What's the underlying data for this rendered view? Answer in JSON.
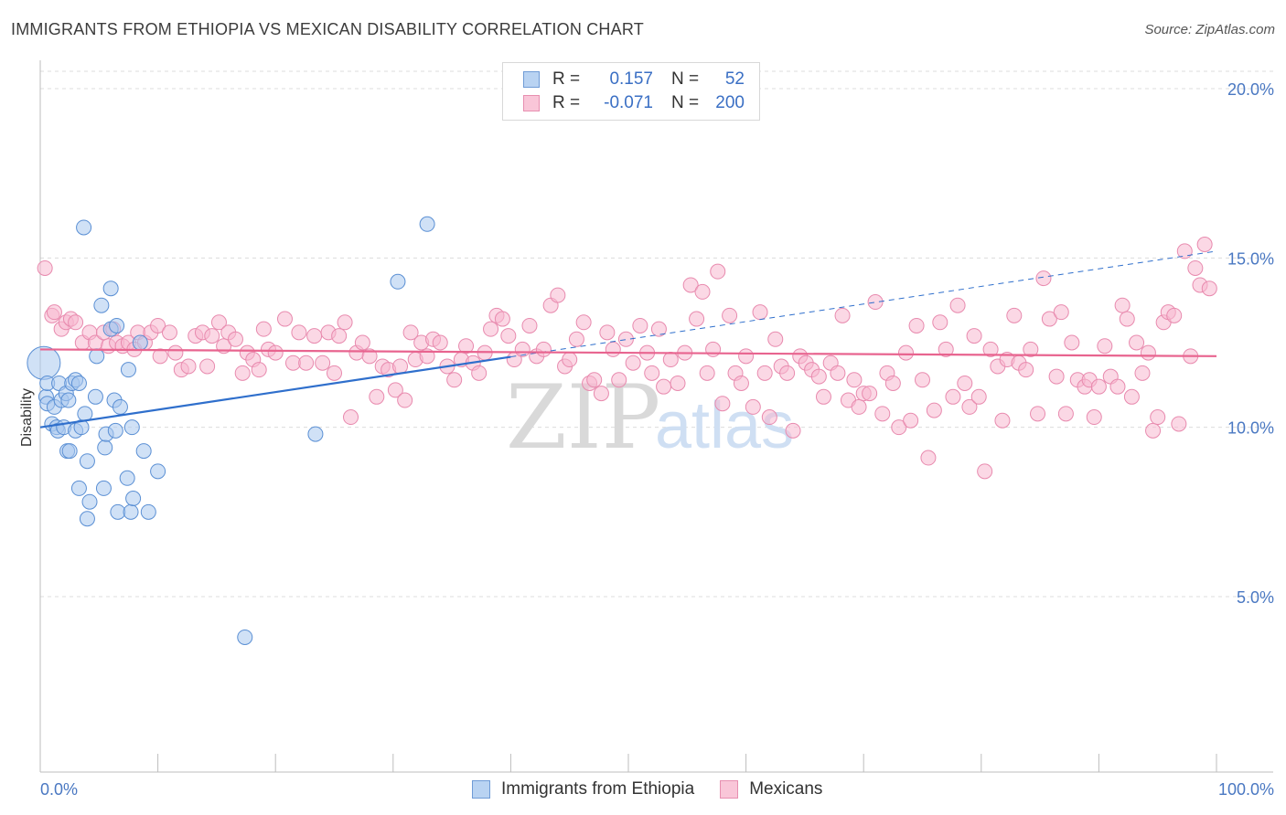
{
  "title": "IMMIGRANTS FROM ETHIOPIA VS MEXICAN DISABILITY CORRELATION CHART",
  "source": "Source: ZipAtlas.com",
  "watermark": {
    "zip": "ZIP",
    "atlas": "atlas"
  },
  "legend": {
    "rows": [
      {
        "r_label": "R =",
        "r_value": "0.157",
        "n_label": "N =",
        "n_value": "52",
        "swatch_fill": "#b9d3f2",
        "swatch_border": "#6f9bd6"
      },
      {
        "r_label": "R =",
        "r_value": "-0.071",
        "n_label": "N =",
        "n_value": "200",
        "swatch_fill": "#f9c6d8",
        "swatch_border": "#e78fb0"
      }
    ]
  },
  "bottom_legend": [
    {
      "label": "Immigrants from Ethiopia",
      "fill": "#b9d3f2",
      "border": "#6f9bd6"
    },
    {
      "label": "Mexicans",
      "fill": "#f9c6d8",
      "border": "#e78fb0"
    }
  ],
  "chart_data": {
    "type": "scatter",
    "title": "IMMIGRANTS FROM ETHIOPIA VS MEXICAN DISABILITY CORRELATION CHART",
    "xlabel": "",
    "ylabel": "Disability",
    "xlim": [
      0,
      100
    ],
    "ylim": [
      0,
      20.5
    ],
    "x_tick_labels": [
      {
        "value": 0,
        "label": "0.0%"
      },
      {
        "value": 100,
        "label": "100.0%"
      }
    ],
    "y_ticks": [
      {
        "value": 5,
        "label": "5.0%"
      },
      {
        "value": 10,
        "label": "10.0%"
      },
      {
        "value": 15,
        "label": "15.0%"
      },
      {
        "value": 20,
        "label": "20.0%"
      }
    ],
    "grid": true,
    "colors": {
      "ethiopia_fill": "#a9c9ef",
      "ethiopia_stroke": "#5a8fd4",
      "ethiopia_line": "#2f6fcc",
      "mexican_fill": "#f7b8cf",
      "mexican_stroke": "#e88aae",
      "mexican_line": "#e8648f"
    },
    "series": [
      {
        "name": "Immigrants from Ethiopia",
        "trend": {
          "x0": 0,
          "y0": 10.0,
          "x1": 100,
          "y1": 15.2,
          "solid_until_x": 40
        },
        "points": [
          [
            0.3,
            11.9
          ],
          [
            0.5,
            10.9
          ],
          [
            0.6,
            11.3
          ],
          [
            0.6,
            10.7
          ],
          [
            1.0,
            10.1
          ],
          [
            1.2,
            10.6
          ],
          [
            1.4,
            10.0
          ],
          [
            1.5,
            9.9
          ],
          [
            1.6,
            11.3
          ],
          [
            1.8,
            10.8
          ],
          [
            2.0,
            10.0
          ],
          [
            2.2,
            11.0
          ],
          [
            2.3,
            9.3
          ],
          [
            2.4,
            10.8
          ],
          [
            2.5,
            9.3
          ],
          [
            2.7,
            11.3
          ],
          [
            3.0,
            11.4
          ],
          [
            3.0,
            9.9
          ],
          [
            3.3,
            11.3
          ],
          [
            3.3,
            8.2
          ],
          [
            3.5,
            10.0
          ],
          [
            3.7,
            15.9
          ],
          [
            3.8,
            10.4
          ],
          [
            4.0,
            7.3
          ],
          [
            4.0,
            9.0
          ],
          [
            4.2,
            7.8
          ],
          [
            4.7,
            10.9
          ],
          [
            4.8,
            12.1
          ],
          [
            5.2,
            13.6
          ],
          [
            5.4,
            8.2
          ],
          [
            5.5,
            9.4
          ],
          [
            5.6,
            9.8
          ],
          [
            6.0,
            12.9
          ],
          [
            6.0,
            14.1
          ],
          [
            6.3,
            10.8
          ],
          [
            6.4,
            9.9
          ],
          [
            6.5,
            13.0
          ],
          [
            6.6,
            7.5
          ],
          [
            6.8,
            10.6
          ],
          [
            7.4,
            8.5
          ],
          [
            7.5,
            11.7
          ],
          [
            7.7,
            7.5
          ],
          [
            7.8,
            10.0
          ],
          [
            7.9,
            7.9
          ],
          [
            8.5,
            12.5
          ],
          [
            8.8,
            9.3
          ],
          [
            9.2,
            7.5
          ],
          [
            10.0,
            8.7
          ],
          [
            17.4,
            3.8
          ],
          [
            23.4,
            9.8
          ],
          [
            30.4,
            14.3
          ],
          [
            32.9,
            16.0
          ]
        ],
        "sizes": {
          "large_point_index": 0
        }
      },
      {
        "name": "Mexicans",
        "trend": {
          "x0": 0,
          "y0": 12.3,
          "x1": 100,
          "y1": 12.1
        },
        "points": [
          [
            0.4,
            14.7
          ],
          [
            1.0,
            13.3
          ],
          [
            1.2,
            13.4
          ],
          [
            1.8,
            12.9
          ],
          [
            2.2,
            13.1
          ],
          [
            2.6,
            13.2
          ],
          [
            3.0,
            13.1
          ],
          [
            3.6,
            12.5
          ],
          [
            4.2,
            12.8
          ],
          [
            4.7,
            12.5
          ],
          [
            5.4,
            12.8
          ],
          [
            5.8,
            12.4
          ],
          [
            6.2,
            12.9
          ],
          [
            6.5,
            12.5
          ],
          [
            7.0,
            12.4
          ],
          [
            7.5,
            12.5
          ],
          [
            8.0,
            12.3
          ],
          [
            8.3,
            12.8
          ],
          [
            8.9,
            12.5
          ],
          [
            9.4,
            12.8
          ],
          [
            10.0,
            13.0
          ],
          [
            10.2,
            12.1
          ],
          [
            11.0,
            12.8
          ],
          [
            11.5,
            12.2
          ],
          [
            12.0,
            11.7
          ],
          [
            12.6,
            11.8
          ],
          [
            13.2,
            12.7
          ],
          [
            13.8,
            12.8
          ],
          [
            14.2,
            11.8
          ],
          [
            14.6,
            12.7
          ],
          [
            15.2,
            13.1
          ],
          [
            15.6,
            12.4
          ],
          [
            16.0,
            12.8
          ],
          [
            16.6,
            12.6
          ],
          [
            17.2,
            11.6
          ],
          [
            17.6,
            12.2
          ],
          [
            18.1,
            12.0
          ],
          [
            18.6,
            11.7
          ],
          [
            19.0,
            12.9
          ],
          [
            19.4,
            12.3
          ],
          [
            20.0,
            12.2
          ],
          [
            20.8,
            13.2
          ],
          [
            21.5,
            11.9
          ],
          [
            22.0,
            12.8
          ],
          [
            22.6,
            11.9
          ],
          [
            23.3,
            12.7
          ],
          [
            24.0,
            11.9
          ],
          [
            24.5,
            12.8
          ],
          [
            25.0,
            11.6
          ],
          [
            25.4,
            12.7
          ],
          [
            25.9,
            13.1
          ],
          [
            26.4,
            10.3
          ],
          [
            26.9,
            12.2
          ],
          [
            27.4,
            12.5
          ],
          [
            28.0,
            12.1
          ],
          [
            28.6,
            10.9
          ],
          [
            29.1,
            11.8
          ],
          [
            29.6,
            11.7
          ],
          [
            30.2,
            11.1
          ],
          [
            30.6,
            11.8
          ],
          [
            31.0,
            10.8
          ],
          [
            31.5,
            12.8
          ],
          [
            31.9,
            12.0
          ],
          [
            32.4,
            12.5
          ],
          [
            32.9,
            12.1
          ],
          [
            33.4,
            12.6
          ],
          [
            34.0,
            12.5
          ],
          [
            34.6,
            11.8
          ],
          [
            35.2,
            11.4
          ],
          [
            35.8,
            12.0
          ],
          [
            36.2,
            12.4
          ],
          [
            36.8,
            11.9
          ],
          [
            37.3,
            11.6
          ],
          [
            37.8,
            12.2
          ],
          [
            38.3,
            12.9
          ],
          [
            38.8,
            13.3
          ],
          [
            39.3,
            13.2
          ],
          [
            39.8,
            12.7
          ],
          [
            40.3,
            12.0
          ],
          [
            41.0,
            12.3
          ],
          [
            41.6,
            13.0
          ],
          [
            42.2,
            12.1
          ],
          [
            42.8,
            12.3
          ],
          [
            43.4,
            13.6
          ],
          [
            44.0,
            13.9
          ],
          [
            44.6,
            11.8
          ],
          [
            45.0,
            12.0
          ],
          [
            45.6,
            12.6
          ],
          [
            46.2,
            13.1
          ],
          [
            46.7,
            11.3
          ],
          [
            47.1,
            11.4
          ],
          [
            47.7,
            11.0
          ],
          [
            48.2,
            12.8
          ],
          [
            48.7,
            12.3
          ],
          [
            49.2,
            11.4
          ],
          [
            49.8,
            12.6
          ],
          [
            50.4,
            11.9
          ],
          [
            51.0,
            13.0
          ],
          [
            51.6,
            12.2
          ],
          [
            52.0,
            11.6
          ],
          [
            52.6,
            12.9
          ],
          [
            53.0,
            11.2
          ],
          [
            53.6,
            12.0
          ],
          [
            54.2,
            11.3
          ],
          [
            54.8,
            12.2
          ],
          [
            55.3,
            14.2
          ],
          [
            55.8,
            13.2
          ],
          [
            56.3,
            14.0
          ],
          [
            56.7,
            11.6
          ],
          [
            57.2,
            12.3
          ],
          [
            57.6,
            14.6
          ],
          [
            58.0,
            10.7
          ],
          [
            58.6,
            13.3
          ],
          [
            59.1,
            11.6
          ],
          [
            59.6,
            11.3
          ],
          [
            60.0,
            12.1
          ],
          [
            60.6,
            10.6
          ],
          [
            61.2,
            13.4
          ],
          [
            61.6,
            11.6
          ],
          [
            62.0,
            10.3
          ],
          [
            62.5,
            12.6
          ],
          [
            63.0,
            11.8
          ],
          [
            63.5,
            11.6
          ],
          [
            64.0,
            9.9
          ],
          [
            64.6,
            12.1
          ],
          [
            65.1,
            11.9
          ],
          [
            65.6,
            11.7
          ],
          [
            66.2,
            11.5
          ],
          [
            66.6,
            10.9
          ],
          [
            67.2,
            11.9
          ],
          [
            67.8,
            11.6
          ],
          [
            68.2,
            13.3
          ],
          [
            68.7,
            10.8
          ],
          [
            69.2,
            11.4
          ],
          [
            69.6,
            10.6
          ],
          [
            70.0,
            11.0
          ],
          [
            70.5,
            11.0
          ],
          [
            71.0,
            13.7
          ],
          [
            71.6,
            10.4
          ],
          [
            72.0,
            11.6
          ],
          [
            72.5,
            11.3
          ],
          [
            73.0,
            10.0
          ],
          [
            73.6,
            12.2
          ],
          [
            74.0,
            10.2
          ],
          [
            74.5,
            13.0
          ],
          [
            75.0,
            11.4
          ],
          [
            75.5,
            9.1
          ],
          [
            76.0,
            10.5
          ],
          [
            76.5,
            13.1
          ],
          [
            77.0,
            12.3
          ],
          [
            77.6,
            10.9
          ],
          [
            78.0,
            13.6
          ],
          [
            78.6,
            11.3
          ],
          [
            79.0,
            10.6
          ],
          [
            79.4,
            12.7
          ],
          [
            79.8,
            10.9
          ],
          [
            80.3,
            8.7
          ],
          [
            80.8,
            12.3
          ],
          [
            81.4,
            11.8
          ],
          [
            81.8,
            10.2
          ],
          [
            82.2,
            12.0
          ],
          [
            82.8,
            13.3
          ],
          [
            83.2,
            11.9
          ],
          [
            83.8,
            11.7
          ],
          [
            84.2,
            12.3
          ],
          [
            84.8,
            10.4
          ],
          [
            85.3,
            14.4
          ],
          [
            85.8,
            13.2
          ],
          [
            86.4,
            11.5
          ],
          [
            86.8,
            13.4
          ],
          [
            87.2,
            10.4
          ],
          [
            87.7,
            12.5
          ],
          [
            88.2,
            11.4
          ],
          [
            88.8,
            11.2
          ],
          [
            89.2,
            11.4
          ],
          [
            89.6,
            10.3
          ],
          [
            90.0,
            11.2
          ],
          [
            90.5,
            12.4
          ],
          [
            91.0,
            11.5
          ],
          [
            91.6,
            11.2
          ],
          [
            92.0,
            13.6
          ],
          [
            92.4,
            13.2
          ],
          [
            92.8,
            10.9
          ],
          [
            93.2,
            12.5
          ],
          [
            93.7,
            11.6
          ],
          [
            94.2,
            12.2
          ],
          [
            94.6,
            9.9
          ],
          [
            95.0,
            10.3
          ],
          [
            95.5,
            13.1
          ],
          [
            95.9,
            13.4
          ],
          [
            96.4,
            13.3
          ],
          [
            96.8,
            10.1
          ],
          [
            97.3,
            15.2
          ],
          [
            97.8,
            12.1
          ],
          [
            98.2,
            14.7
          ],
          [
            98.6,
            14.2
          ],
          [
            99.0,
            15.4
          ],
          [
            99.4,
            14.1
          ]
        ]
      }
    ]
  }
}
